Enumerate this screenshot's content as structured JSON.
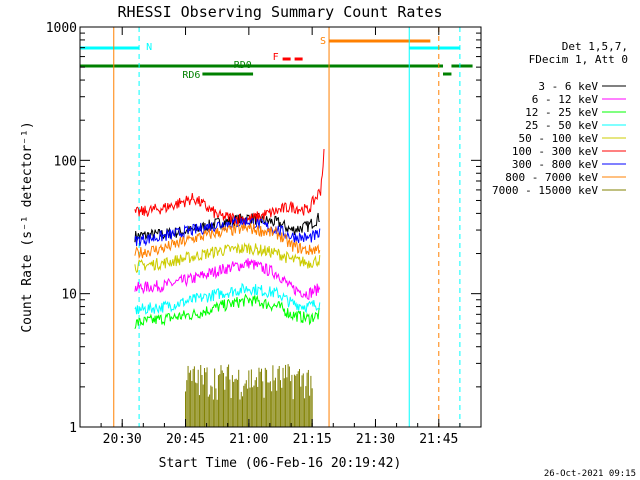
{
  "chart_data": {
    "type": "line",
    "title": "RHESSI Observing Summary Count Rates",
    "xlabel": "Start Time (06-Feb-16 20:19:42)",
    "ylabel": "Count Rate (s⁻¹ detector⁻¹)",
    "y_scale": "log",
    "ylim": [
      1,
      1000
    ],
    "xlim": [
      "20:20",
      "21:55"
    ],
    "x_ticks": [
      "20:30",
      "20:45",
      "21:00",
      "21:15",
      "21:30",
      "21:45"
    ],
    "y_ticks": [
      "1",
      "10",
      "100",
      "1000"
    ],
    "grid": false,
    "legend_position": "top-right",
    "legend_header": [
      "Det 1,5,7,",
      "FDecim 1, Att 0"
    ],
    "timestamp": "26-Oct-2021 09:15",
    "series": [
      {
        "name": "3 - 6 keV",
        "color": "#000000",
        "x": [
          "20:33",
          "20:40",
          "20:47",
          "20:53",
          "21:00",
          "21:07",
          "21:10",
          "21:14",
          "21:17"
        ],
        "values": [
          27,
          28,
          30,
          34,
          37,
          34,
          30,
          32,
          38
        ]
      },
      {
        "name": "6 - 12 keV",
        "color": "#ff00ff",
        "x": [
          "20:33",
          "20:40",
          "20:47",
          "20:53",
          "21:00",
          "21:07",
          "21:10",
          "21:14",
          "21:17"
        ],
        "values": [
          11,
          11.5,
          13,
          15,
          17,
          14,
          11,
          10,
          11
        ]
      },
      {
        "name": "12 - 25 keV",
        "color": "#00ff00",
        "x": [
          "20:33",
          "20:40",
          "20:47",
          "20:53",
          "21:00",
          "21:07",
          "21:10",
          "21:14",
          "21:17"
        ],
        "values": [
          6,
          6.5,
          7,
          8,
          9,
          8,
          7,
          6.5,
          7
        ]
      },
      {
        "name": "25 - 50 keV",
        "color": "#00ffff",
        "x": [
          "20:33",
          "20:40",
          "20:47",
          "20:53",
          "21:00",
          "21:07",
          "21:10",
          "21:14",
          "21:17"
        ],
        "values": [
          7.5,
          8,
          9,
          10,
          11,
          10,
          8.5,
          8,
          8.5
        ]
      },
      {
        "name": "50 - 100 keV",
        "color": "#cccc00",
        "x": [
          "20:33",
          "20:40",
          "20:47",
          "20:53",
          "21:00",
          "21:07",
          "21:10",
          "21:14",
          "21:17"
        ],
        "values": [
          16,
          17,
          19,
          21,
          22,
          20,
          18,
          17,
          18
        ]
      },
      {
        "name": "100 - 300 keV",
        "color": "#ff0000",
        "x": [
          "20:33",
          "20:40",
          "20:47",
          "20:53",
          "21:00",
          "21:07",
          "21:10",
          "21:14",
          "21:17",
          "21:18"
        ],
        "values": [
          40,
          44,
          52,
          38,
          36,
          42,
          45,
          42,
          60,
          130
        ]
      },
      {
        "name": "300 - 800 keV",
        "color": "#0000ff",
        "x": [
          "20:33",
          "20:40",
          "20:47",
          "20:53",
          "21:00",
          "21:07",
          "21:10",
          "21:14",
          "21:17"
        ],
        "values": [
          25,
          27,
          30,
          33,
          35,
          30,
          27,
          26,
          28
        ]
      },
      {
        "name": "800 - 7000 keV",
        "color": "#ff8000",
        "x": [
          "20:33",
          "20:40",
          "20:47",
          "20:53",
          "21:00",
          "21:07",
          "21:10",
          "21:14",
          "21:17"
        ],
        "values": [
          20,
          22,
          26,
          29,
          31,
          28,
          23,
          21,
          22
        ]
      },
      {
        "name": "7000 - 15000 keV",
        "color": "#808000",
        "x": [
          "20:45",
          "20:50",
          "20:55",
          "21:00",
          "21:05",
          "21:10",
          "21:15"
        ],
        "values": [
          2,
          2.5,
          2.5,
          2,
          2,
          1.8,
          2
        ]
      }
    ],
    "annotations": [
      {
        "label": "N",
        "color": "#00ffff",
        "bars": [
          [
            "20:20",
            "20:34"
          ],
          [
            "21:38",
            "21:50"
          ]
        ]
      },
      {
        "label": "S",
        "color": "#ff8000",
        "bars": [
          [
            "21:19",
            "21:43"
          ]
        ]
      },
      {
        "label": "F",
        "color": "#ff0000",
        "bars": [
          [
            "21:08",
            "21:13"
          ]
        ]
      },
      {
        "label": "RD0",
        "color": "#008000",
        "bars": [
          [
            "20:20",
            "21:46"
          ],
          [
            "21:48",
            "21:53"
          ]
        ]
      },
      {
        "label": "RD6",
        "color": "#008000",
        "bars": [
          [
            "20:49",
            "21:01"
          ],
          [
            "21:46",
            "21:48"
          ]
        ]
      }
    ],
    "vertical_markers": [
      {
        "time": "20:20",
        "color": "#00ffff",
        "style": "solid"
      },
      {
        "time": "20:34",
        "color": "#00ffff",
        "style": "dashed"
      },
      {
        "time": "21:38",
        "color": "#00ffff",
        "style": "solid"
      },
      {
        "time": "21:50",
        "color": "#00ffff",
        "style": "dashed"
      },
      {
        "time": "20:28",
        "color": "#ff8000",
        "style": "solid"
      },
      {
        "time": "21:19",
        "color": "#ff8000",
        "style": "solid"
      },
      {
        "time": "21:45",
        "color": "#ff8000",
        "style": "dashed"
      }
    ]
  }
}
